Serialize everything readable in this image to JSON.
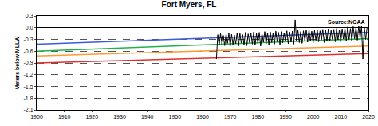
{
  "chart_data": {
    "type": "line",
    "title": "Fort Myers, FL",
    "y_label": "Meters below MLLW",
    "annotations": [
      "Source:NOAA"
    ],
    "xlim": [
      1900,
      2020
    ],
    "xticks": [
      1900,
      1910,
      1920,
      1930,
      1940,
      1950,
      1960,
      1970,
      1980,
      1990,
      2000,
      2010,
      2020
    ],
    "ylim": [
      -2.1,
      0.3
    ],
    "yticks": [
      -2.1,
      -1.8,
      -1.5,
      -1.2,
      -0.9,
      -0.6,
      -0.3,
      {
        "value": 0,
        "label": "0.0"
      },
      0.3
    ],
    "grid": true,
    "series": [
      {
        "color": "#3b5bdb",
        "line_style": "solid",
        "x": [
          1900,
          2020
        ],
        "values": [
          -0.42,
          -0.12
        ]
      },
      {
        "color": "#22b14c",
        "line_style": "solid",
        "x": [
          1900,
          2020
        ],
        "values": [
          -0.6,
          -0.28
        ]
      },
      {
        "color": "#ff9933",
        "line_style": "solid",
        "x": [
          1900,
          2020
        ],
        "values": [
          -0.72,
          -0.47
        ]
      },
      {
        "color": "#e03030",
        "line_style": "solid",
        "x": [
          1900,
          2020
        ],
        "values": [
          -0.9,
          -0.66
        ]
      },
      {
        "color": "#000000",
        "line_style": "solid",
        "x": [
          1965.0,
          1965.5,
          1966.0,
          1966.5,
          1967.0,
          1967.5,
          1968.0,
          1968.5,
          1969.0,
          1969.5,
          1970.0,
          1970.5,
          1971.0,
          1971.5,
          1972.0,
          1972.5,
          1973.0,
          1973.5,
          1974.0,
          1974.5,
          1975.0,
          1975.5,
          1976.0,
          1976.5,
          1977.0,
          1977.5,
          1978.0,
          1978.5,
          1979.0,
          1979.5,
          1980.0,
          1980.5,
          1981.0,
          1981.5,
          1982.0,
          1982.5,
          1983.0,
          1983.5,
          1984.0,
          1984.5,
          1985.0,
          1985.5,
          1986.0,
          1986.5,
          1987.0,
          1987.5,
          1988.0,
          1988.5,
          1989.0,
          1989.5,
          1990.0,
          1990.5,
          1991.0,
          1991.5,
          1992.0,
          1992.5,
          1993.0,
          1993.5,
          1994.0,
          1994.5,
          1995.0,
          1995.5,
          1996.0,
          1996.5,
          1997.0,
          1997.5,
          1998.0,
          1998.5,
          1999.0,
          1999.5,
          2000.0,
          2000.5,
          2001.0,
          2001.5,
          2002.0,
          2002.5,
          2003.0,
          2003.5,
          2004.0,
          2004.5,
          2005.0,
          2005.5,
          2006.0,
          2006.5,
          2007.0,
          2007.5,
          2008.0,
          2008.5,
          2009.0,
          2009.5,
          2010.0,
          2010.5,
          2011.0,
          2011.5,
          2012.0,
          2012.5,
          2013.0,
          2013.5,
          2014.0,
          2014.5,
          2015.0,
          2015.5,
          2016.0,
          2016.5,
          2017.0,
          2017.5,
          2018.0,
          2018.5,
          2019.0,
          2019.5
        ],
        "values": [
          -0.8,
          -0.18,
          -0.45,
          -0.15,
          -0.42,
          -0.2,
          -0.46,
          -0.16,
          -0.4,
          -0.14,
          -0.48,
          -0.17,
          -0.43,
          -0.19,
          -0.41,
          -0.13,
          -0.47,
          -0.15,
          -0.39,
          -0.18,
          -0.44,
          -0.12,
          -0.46,
          -0.16,
          -0.38,
          -0.14,
          -0.42,
          -0.11,
          -0.45,
          -0.15,
          -0.4,
          -0.12,
          -0.47,
          -0.16,
          -0.37,
          -0.1,
          -0.41,
          -0.13,
          -0.44,
          -0.11,
          -0.38,
          -0.14,
          -0.42,
          -0.09,
          -0.36,
          -0.12,
          -0.43,
          -0.1,
          -0.39,
          -0.13,
          -0.35,
          -0.08,
          -0.41,
          -0.11,
          -0.37,
          -0.09,
          -0.42,
          0.2,
          -0.34,
          -0.07,
          -0.38,
          -0.1,
          -0.4,
          -0.08,
          -0.33,
          -0.06,
          -0.37,
          -0.05,
          -0.35,
          -0.09,
          -0.39,
          -0.07,
          -0.32,
          -0.05,
          -0.36,
          -0.08,
          -0.31,
          -0.04,
          -0.38,
          -0.06,
          -0.33,
          -0.03,
          -0.35,
          -0.07,
          -0.3,
          -0.04,
          -0.36,
          -0.02,
          -0.31,
          -0.05,
          -0.37,
          -0.03,
          -0.29,
          -0.01,
          -0.33,
          0.02,
          -0.3,
          -0.02,
          -0.34,
          0.03,
          -0.28,
          0.01,
          -0.32,
          0.04,
          -0.27,
          0.05,
          -0.8,
          0.02,
          -0.3,
          0.0
        ]
      }
    ]
  }
}
